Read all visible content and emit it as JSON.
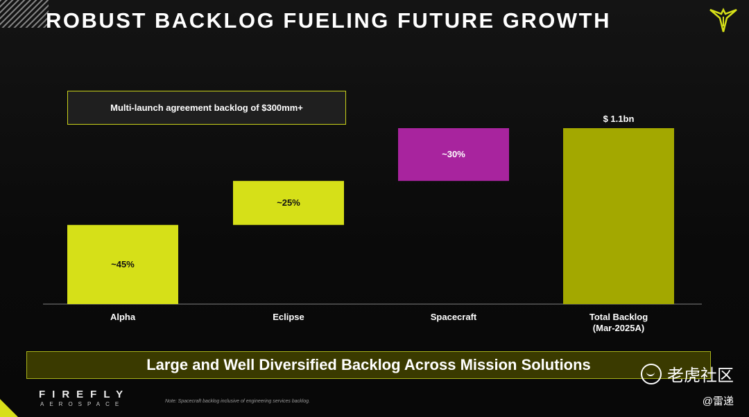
{
  "header": {
    "title": "ROBUST BACKLOG FUELING FUTURE GROWTH"
  },
  "callout": {
    "text": "Multi-launch agreement backlog of $300mm+"
  },
  "chart_data": {
    "type": "bar",
    "subtype": "waterfall",
    "categories": [
      "Alpha",
      "Eclipse",
      "Spacecraft",
      "Total Backlog\n(Mar-2025A)"
    ],
    "values": [
      45,
      25,
      30,
      100
    ],
    "value_labels": [
      "~45%",
      "~25%",
      "~30%",
      ""
    ],
    "total_label": "$ 1.1bn",
    "colors": [
      "#d6e018",
      "#d6e018",
      "#a8249e",
      "#a3a800"
    ],
    "ylim": [
      0,
      100
    ]
  },
  "banner": {
    "text": "Large and Well Diversified Backlog Across Mission Solutions"
  },
  "footer": {
    "brand": "FIREFLY",
    "brand_sub": "AEROSPACE",
    "note": "Note: Spacecraft backlog inclusive of engineering services backlog."
  },
  "watermark": {
    "text": "老虎社区",
    "handle": "@雷递"
  }
}
